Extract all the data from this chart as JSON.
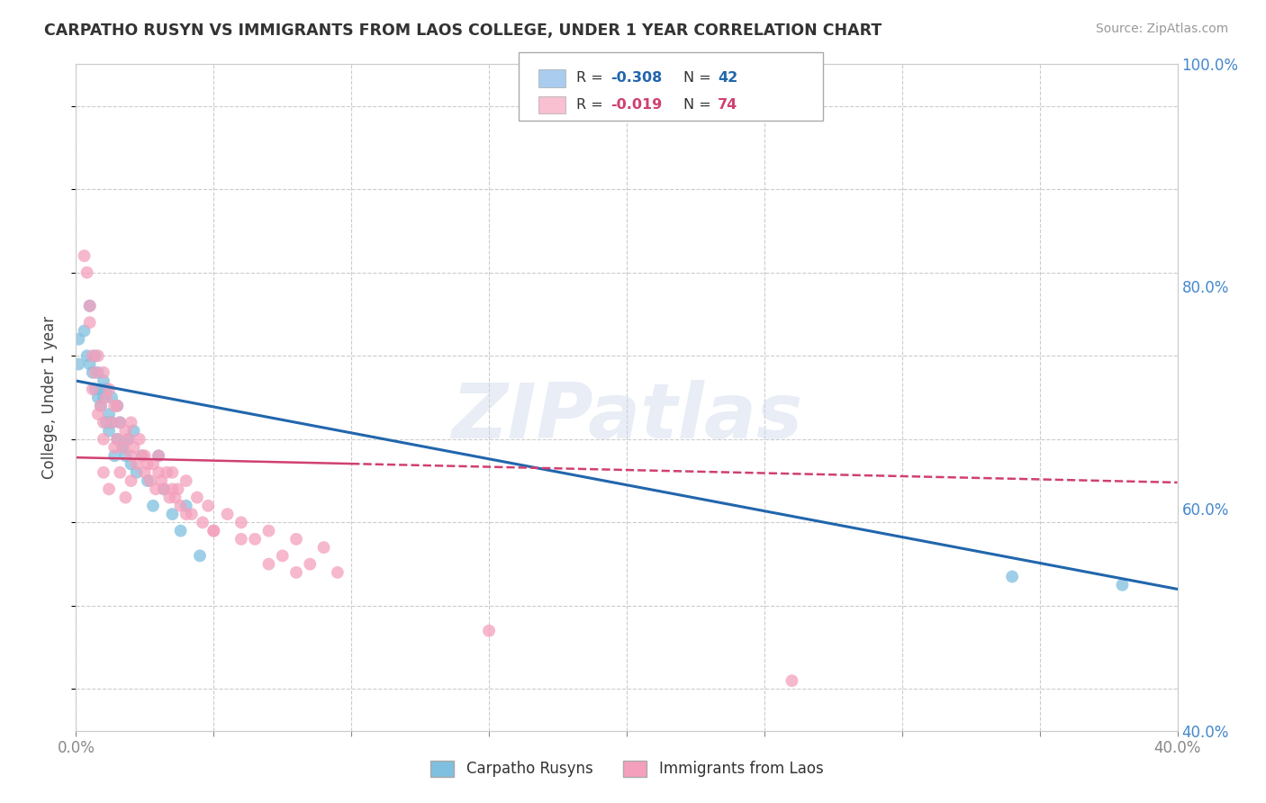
{
  "title": "CARPATHO RUSYN VS IMMIGRANTS FROM LAOS COLLEGE, UNDER 1 YEAR CORRELATION CHART",
  "source": "Source: ZipAtlas.com",
  "ylabel": "College, Under 1 year",
  "blue_scatter_color": "#7fbfdf",
  "pink_scatter_color": "#f4a0bc",
  "blue_line_color": "#2166ac",
  "pink_line_color": "#d04070",
  "legend_blue_patch": "#aaccee",
  "legend_pink_patch": "#f8c0d0",
  "blue_r_text": "-0.308",
  "blue_n_text": "42",
  "pink_r_text": "-0.019",
  "pink_n_text": "74",
  "watermark": "ZIPatlas",
  "blue_points_x": [
    0.001,
    0.001,
    0.003,
    0.004,
    0.005,
    0.005,
    0.006,
    0.007,
    0.007,
    0.008,
    0.008,
    0.009,
    0.009,
    0.01,
    0.01,
    0.011,
    0.011,
    0.012,
    0.012,
    0.013,
    0.013,
    0.014,
    0.015,
    0.015,
    0.016,
    0.017,
    0.018,
    0.019,
    0.02,
    0.021,
    0.022,
    0.024,
    0.026,
    0.028,
    0.03,
    0.032,
    0.035,
    0.038,
    0.04,
    0.045,
    0.34,
    0.38
  ],
  "blue_points_y": [
    0.72,
    0.69,
    0.73,
    0.7,
    0.69,
    0.76,
    0.68,
    0.66,
    0.7,
    0.65,
    0.68,
    0.66,
    0.64,
    0.67,
    0.65,
    0.62,
    0.66,
    0.63,
    0.61,
    0.65,
    0.62,
    0.58,
    0.64,
    0.6,
    0.62,
    0.59,
    0.58,
    0.6,
    0.57,
    0.61,
    0.56,
    0.58,
    0.55,
    0.52,
    0.58,
    0.54,
    0.51,
    0.49,
    0.52,
    0.46,
    0.435,
    0.425
  ],
  "pink_points_x": [
    0.003,
    0.004,
    0.005,
    0.006,
    0.007,
    0.008,
    0.009,
    0.01,
    0.01,
    0.011,
    0.012,
    0.013,
    0.014,
    0.015,
    0.015,
    0.016,
    0.017,
    0.018,
    0.019,
    0.02,
    0.02,
    0.021,
    0.022,
    0.023,
    0.024,
    0.025,
    0.026,
    0.027,
    0.028,
    0.029,
    0.03,
    0.031,
    0.032,
    0.033,
    0.034,
    0.035,
    0.036,
    0.037,
    0.038,
    0.04,
    0.042,
    0.044,
    0.046,
    0.048,
    0.05,
    0.055,
    0.06,
    0.065,
    0.07,
    0.075,
    0.08,
    0.085,
    0.09,
    0.095,
    0.01,
    0.012,
    0.014,
    0.016,
    0.018,
    0.02,
    0.006,
    0.008,
    0.025,
    0.03,
    0.035,
    0.04,
    0.05,
    0.06,
    0.07,
    0.08,
    0.005,
    0.01,
    0.15,
    0.26
  ],
  "pink_points_y": [
    0.82,
    0.8,
    0.76,
    0.66,
    0.68,
    0.7,
    0.64,
    0.68,
    0.62,
    0.65,
    0.66,
    0.62,
    0.64,
    0.6,
    0.64,
    0.62,
    0.59,
    0.61,
    0.6,
    0.58,
    0.62,
    0.59,
    0.57,
    0.6,
    0.58,
    0.56,
    0.57,
    0.55,
    0.57,
    0.54,
    0.58,
    0.55,
    0.54,
    0.56,
    0.53,
    0.56,
    0.53,
    0.54,
    0.52,
    0.55,
    0.51,
    0.53,
    0.5,
    0.52,
    0.49,
    0.51,
    0.5,
    0.48,
    0.49,
    0.46,
    0.48,
    0.45,
    0.47,
    0.44,
    0.56,
    0.54,
    0.59,
    0.56,
    0.53,
    0.55,
    0.7,
    0.63,
    0.58,
    0.56,
    0.54,
    0.51,
    0.49,
    0.48,
    0.45,
    0.44,
    0.74,
    0.6,
    0.37,
    0.31
  ],
  "xlim": [
    0.0,
    0.4
  ],
  "ylim": [
    0.25,
    1.05
  ],
  "right_ylim": [
    0.4,
    1.0
  ],
  "grid_color": "#cccccc",
  "bg_color": "#ffffff",
  "accent_color": "#4488cc",
  "blue_line_x0": 0.0,
  "blue_line_x1": 0.4,
  "blue_line_y0": 0.67,
  "blue_line_y1": 0.42,
  "pink_line_x0": 0.0,
  "pink_line_x1": 0.4,
  "pink_line_y0": 0.578,
  "pink_line_y1": 0.548
}
